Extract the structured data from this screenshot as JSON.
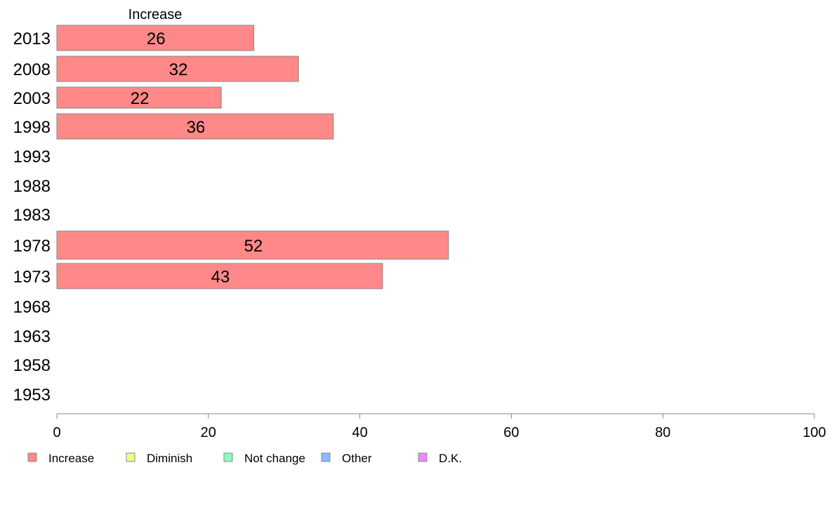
{
  "chart_data": {
    "type": "bar",
    "orientation": "horizontal",
    "series_title": "Increase",
    "categories": [
      "2013",
      "2008",
      "2003",
      "1998",
      "1993",
      "1988",
      "1983",
      "1978",
      "1973",
      "1968",
      "1963",
      "1958",
      "1953"
    ],
    "series": [
      {
        "name": "Increase",
        "values": [
          26,
          32,
          22,
          36,
          null,
          null,
          null,
          52,
          43,
          null,
          null,
          null,
          null
        ]
      }
    ],
    "bar_exact_values": [
      26,
      31.9,
      21.7,
      36.5,
      null,
      null,
      null,
      51.7,
      43,
      null,
      null,
      null,
      null
    ],
    "xlim": [
      0,
      100
    ],
    "x_ticks": [
      0,
      20,
      40,
      60,
      80,
      100
    ],
    "grid": false,
    "legend_position": "bottom",
    "legend": [
      {
        "label": "Increase",
        "color": "#ff8888"
      },
      {
        "label": "Diminish",
        "color": "#eeff88"
      },
      {
        "label": "Not change",
        "color": "#88ffbb"
      },
      {
        "label": "Other",
        "color": "#88bbff"
      },
      {
        "label": "D.K.",
        "color": "#ee88ff"
      }
    ],
    "colors": {
      "bar_fill": "#ff8888",
      "bar_stroke": "#888888",
      "axis": "#888888"
    }
  }
}
